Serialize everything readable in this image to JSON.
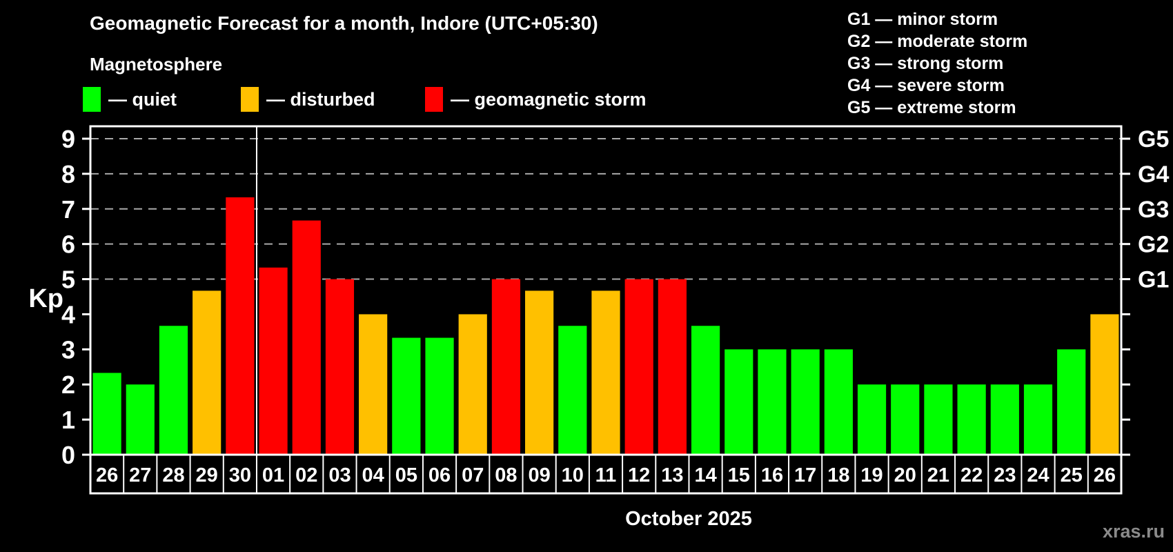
{
  "header": {
    "title": "Geomagnetic Forecast for a month, Indore (UTC+05:30)",
    "subtitle": "Magnetosphere"
  },
  "legend": {
    "items": [
      {
        "key": "quiet",
        "swatch_color": "#00ff00",
        "label": "— quiet"
      },
      {
        "key": "disturbed",
        "swatch_color": "#ffc000",
        "label": "— disturbed"
      },
      {
        "key": "storm",
        "swatch_color": "#ff0000",
        "label": "— geomagnetic storm"
      }
    ]
  },
  "g_scale_legend": {
    "items": [
      "G1 — minor storm",
      "G2 — moderate storm",
      "G3 — strong storm",
      "G4 — severe storm",
      "G5 — extreme storm"
    ]
  },
  "chart_data": {
    "type": "bar",
    "title": "Geomagnetic Forecast for a month, Indore (UTC+05:30)",
    "ylabel": "Kp",
    "xlabel": "October 2025",
    "ylim": [
      0,
      9.4
    ],
    "yticks": [
      0,
      1,
      2,
      3,
      4,
      5,
      6,
      7,
      8,
      9
    ],
    "gridlines_at": [
      5,
      6,
      7,
      8,
      9
    ],
    "grid_style": "dashed gray horizontal lines at storm levels G1–G5",
    "right_axis": {
      "ticks": [
        0,
        1,
        2,
        3,
        4,
        5,
        6,
        7,
        8,
        9
      ],
      "labels": {
        "5": "G1",
        "6": "G2",
        "7": "G3",
        "8": "G4",
        "9": "G5"
      }
    },
    "month_boundary_after_index": 4,
    "categories": [
      "26",
      "27",
      "28",
      "29",
      "30",
      "01",
      "02",
      "03",
      "04",
      "05",
      "06",
      "07",
      "08",
      "09",
      "10",
      "11",
      "12",
      "13",
      "14",
      "15",
      "16",
      "17",
      "18",
      "19",
      "20",
      "21",
      "22",
      "23",
      "24",
      "25",
      "26"
    ],
    "values": [
      2.33,
      2,
      3.67,
      4.67,
      7.33,
      5.33,
      6.67,
      5,
      4,
      3.33,
      3.33,
      4,
      5,
      4.67,
      3.67,
      4.67,
      5,
      5,
      3.67,
      3,
      3,
      3,
      3,
      2,
      2,
      2,
      2,
      2,
      2,
      3,
      4
    ],
    "statuses": [
      "quiet",
      "quiet",
      "quiet",
      "disturbed",
      "storm",
      "storm",
      "storm",
      "storm",
      "disturbed",
      "quiet",
      "quiet",
      "disturbed",
      "storm",
      "disturbed",
      "quiet",
      "disturbed",
      "storm",
      "storm",
      "quiet",
      "quiet",
      "quiet",
      "quiet",
      "quiet",
      "quiet",
      "quiet",
      "quiet",
      "quiet",
      "quiet",
      "quiet",
      "quiet",
      "disturbed"
    ],
    "colors": {
      "quiet": "#00ff00",
      "disturbed": "#ffc000",
      "storm": "#ff0000"
    }
  },
  "footer": {
    "watermark": "xras.ru"
  }
}
